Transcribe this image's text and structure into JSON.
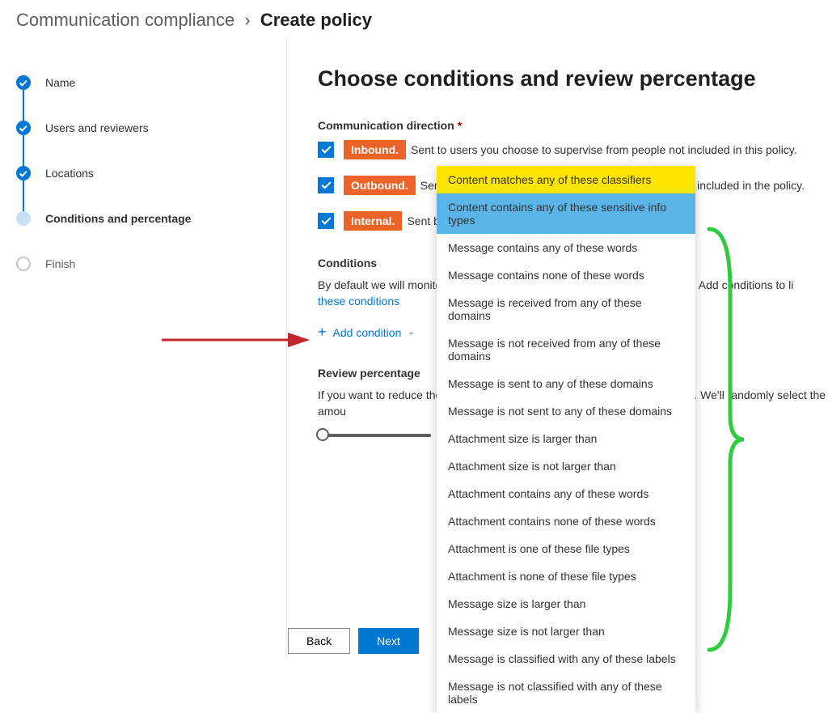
{
  "breadcrumb": {
    "parent": "Communication compliance",
    "current": "Create policy"
  },
  "steps": [
    {
      "label": "Name",
      "state": "done"
    },
    {
      "label": "Users and reviewers",
      "state": "done"
    },
    {
      "label": "Locations",
      "state": "done"
    },
    {
      "label": "Conditions and percentage",
      "state": "current"
    },
    {
      "label": "Finish",
      "state": "future"
    }
  ],
  "page_title": "Choose conditions and review percentage",
  "section_direction": "Communication direction",
  "checks": {
    "inbound": {
      "tag": "Inbound.",
      "desc": "Sent to users you choose to supervise from people not included in this policy."
    },
    "outbound": {
      "tag": "Outbound.",
      "desc": "Sent from users you choose to supervise to people not included in the policy."
    },
    "internal": {
      "tag": "Internal.",
      "desc": "Sent between the users or groups you identify."
    }
  },
  "conditions": {
    "title": "Conditions",
    "body_prefix": "By default we will monitor all communications in the locations you specified. Add conditions to li",
    "link": "these conditions",
    "add_label": "Add condition"
  },
  "review": {
    "title": "Review percentage",
    "body": "If you want to reduce the amount of content to review, specify a percentage. We'll randomly select the amou"
  },
  "dropdown_items": [
    "Content matches any of these classifiers",
    "Content contains any of these sensitive info types",
    "Message contains any of these words",
    "Message contains none of these words",
    "Message is received from any of these domains",
    "Message is not received from any of these domains",
    "Message is sent to any of these domains",
    "Message is not sent to any of these domains",
    "Attachment size is larger than",
    "Attachment size is not larger than",
    "Attachment contains any of these words",
    "Attachment contains none of these words",
    "Attachment is one of these file types",
    "Attachment is none of these file types",
    "Message size is larger than",
    "Message size is not larger than",
    "Message is classified with any of these labels",
    "Message is not classified with any of these labels"
  ],
  "buttons": {
    "back": "Back",
    "next": "Next"
  },
  "colors": {
    "primary": "#0078d4",
    "orange": "#eb6329",
    "yellow": "#ffe600",
    "blue_hl": "#5bb5e8",
    "arrow": "#c1272d",
    "brace": "#2ecc40"
  }
}
